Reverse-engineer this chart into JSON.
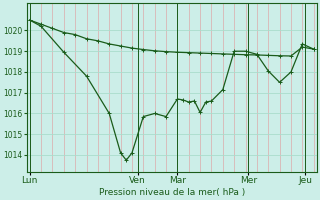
{
  "bg_color": "#cceee8",
  "grid_color_v": "#ddaaaa",
  "grid_color_h": "#aaddcc",
  "line_color": "#1a5c1a",
  "ylabel": "Pression niveau de la mer( hPa )",
  "ylim": [
    1013.2,
    1021.3
  ],
  "yticks": [
    1014,
    1015,
    1016,
    1017,
    1018,
    1019,
    1020
  ],
  "day_labels": [
    "Lun",
    "Ven",
    "Mar",
    "Mer",
    "Jeu"
  ],
  "day_positions": [
    0.0,
    0.38,
    0.52,
    0.77,
    0.97
  ],
  "vgrid_positions": [
    0.0,
    0.04,
    0.08,
    0.12,
    0.16,
    0.2,
    0.24,
    0.28,
    0.32,
    0.36,
    0.4,
    0.44,
    0.48,
    0.52,
    0.56,
    0.6,
    0.64,
    0.68,
    0.72,
    0.76,
    0.8,
    0.84,
    0.88,
    0.92,
    0.96,
    1.0
  ],
  "line1_x": [
    0.0,
    0.04,
    0.08,
    0.12,
    0.16,
    0.2,
    0.24,
    0.28,
    0.32,
    0.36,
    0.4,
    0.44,
    0.48,
    0.52,
    0.56,
    0.6,
    0.64,
    0.68,
    0.72,
    0.76,
    0.8,
    0.84,
    0.88,
    0.92,
    0.96,
    1.0
  ],
  "line1_y": [
    1020.5,
    1020.3,
    1020.1,
    1019.9,
    1019.8,
    1019.6,
    1019.5,
    1019.35,
    1019.25,
    1019.15,
    1019.08,
    1019.02,
    1018.98,
    1018.95,
    1018.93,
    1018.91,
    1018.89,
    1018.87,
    1018.85,
    1018.83,
    1018.82,
    1018.8,
    1018.78,
    1018.77,
    1019.2,
    1019.1
  ],
  "line2_x": [
    0.0,
    0.04,
    0.12,
    0.2,
    0.28,
    0.32,
    0.34,
    0.36,
    0.4,
    0.44,
    0.48,
    0.52,
    0.54,
    0.56,
    0.58,
    0.6,
    0.62,
    0.64,
    0.68,
    0.72,
    0.76,
    0.8,
    0.84,
    0.88,
    0.92,
    0.96,
    1.0
  ],
  "line2_y": [
    1020.5,
    1020.2,
    1018.95,
    1017.8,
    1016.0,
    1014.1,
    1013.75,
    1014.1,
    1015.85,
    1016.0,
    1015.85,
    1016.7,
    1016.65,
    1016.55,
    1016.6,
    1016.05,
    1016.55,
    1016.6,
    1017.15,
    1019.0,
    1019.0,
    1018.85,
    1018.05,
    1017.5,
    1018.0,
    1019.35,
    1019.1
  ]
}
